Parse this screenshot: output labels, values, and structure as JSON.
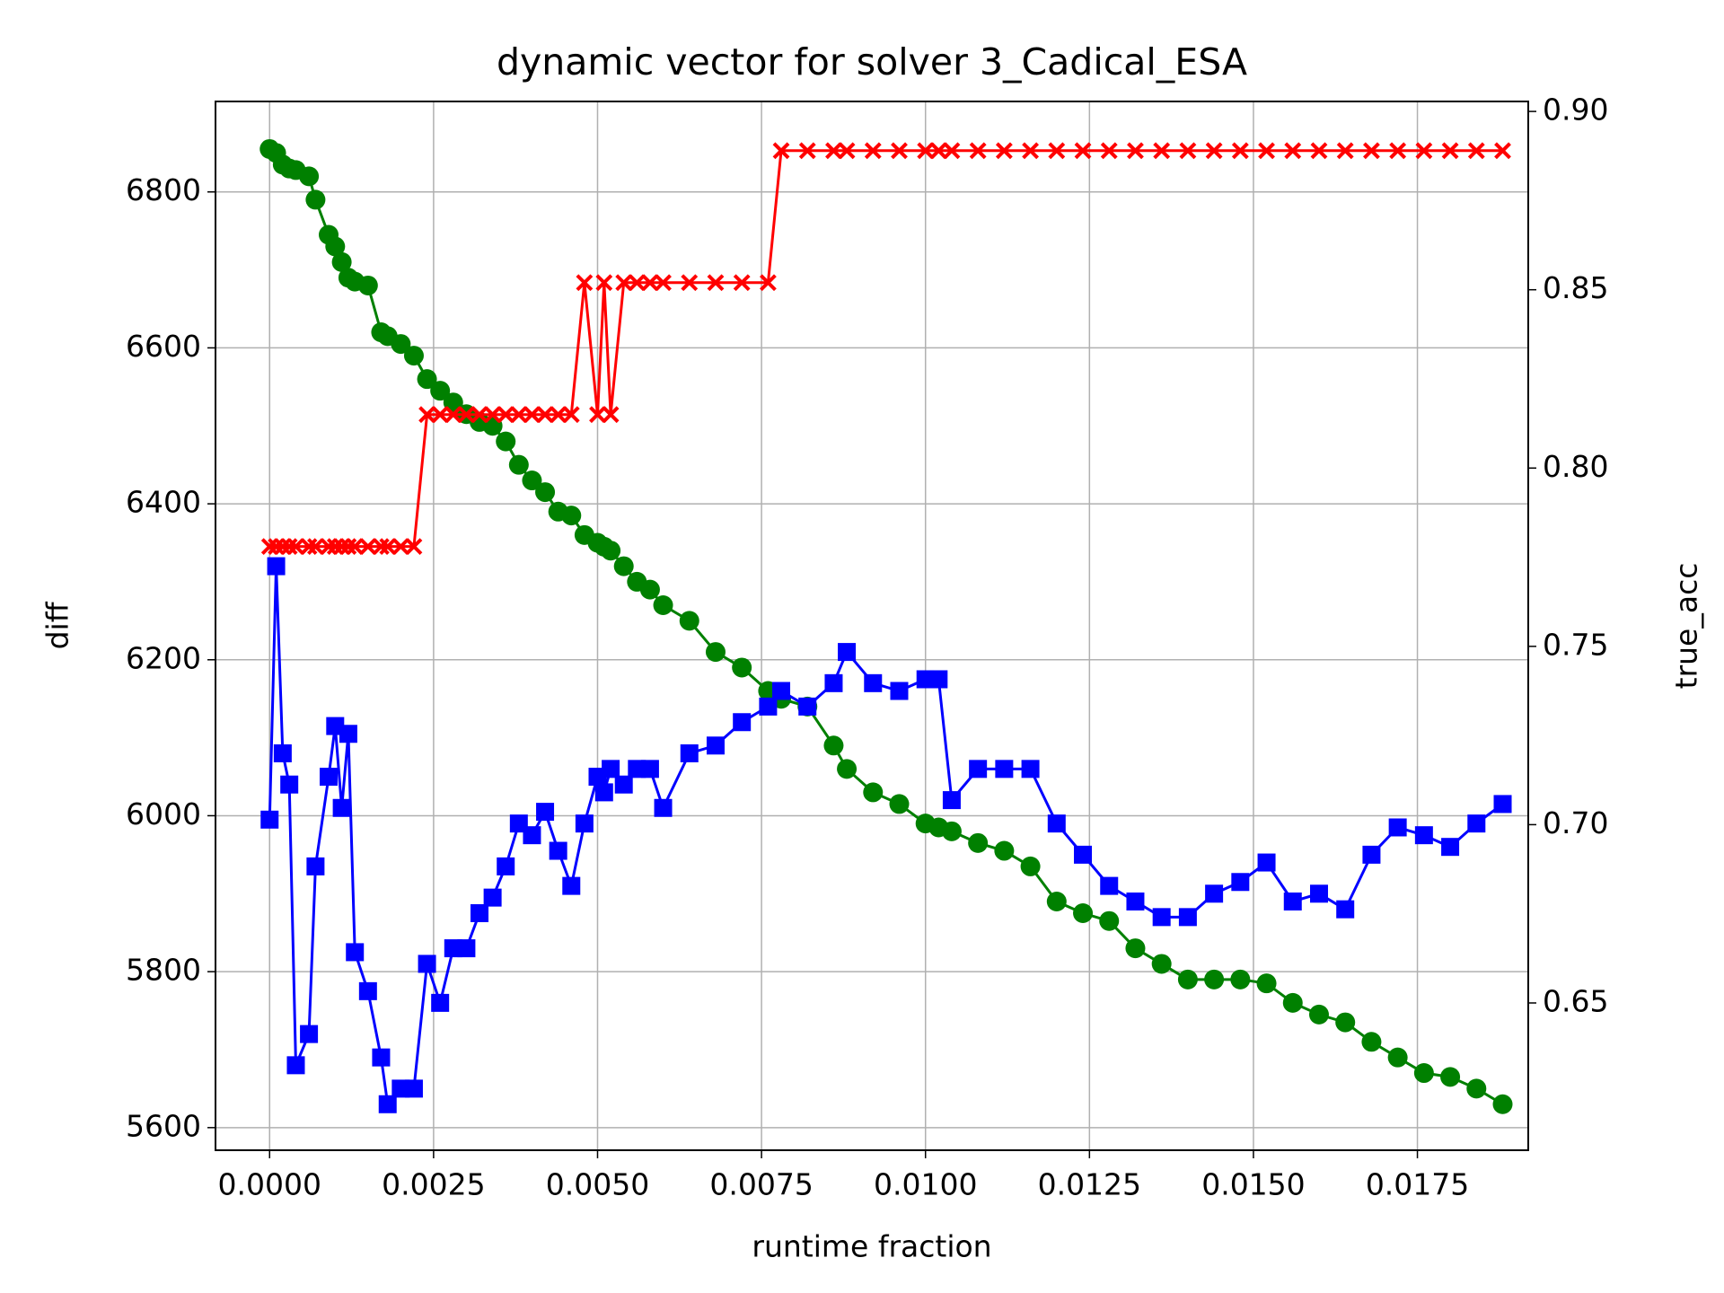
{
  "chart_data": {
    "type": "line",
    "title": "dynamic vector for solver 3_Cadical_ESA",
    "xlabel": "runtime fraction",
    "ylabel": "diff",
    "y2label": "true_acc",
    "ylabel_color": "green",
    "y2label_color": "red",
    "grid": true,
    "x": [
      0,
      0.0001,
      0.0002,
      0.0003,
      0.0004,
      0.0006,
      0.0007,
      0.0009,
      0.001,
      0.0011,
      0.0012,
      0.0013,
      0.0015,
      0.0017,
      0.0018,
      0.002,
      0.0022,
      0.0024,
      0.0026,
      0.0028,
      0.003,
      0.0032,
      0.0034,
      0.0036,
      0.0038,
      0.004,
      0.0042,
      0.0044,
      0.0046,
      0.0048,
      0.005,
      0.0051,
      0.0052,
      0.0054,
      0.0056,
      0.0058,
      0.006,
      0.0064,
      0.0068,
      0.0072,
      0.0076,
      0.0078,
      0.0082,
      0.0086,
      0.0088,
      0.0092,
      0.0096,
      0.01,
      0.0102,
      0.0104,
      0.0108,
      0.0112,
      0.0116,
      0.012,
      0.0124,
      0.0128,
      0.0132,
      0.0136,
      0.014,
      0.0144,
      0.0148,
      0.0152,
      0.0156,
      0.016,
      0.0164,
      0.0168,
      0.0172,
      0.0176,
      0.018,
      0.0184,
      0.0188
    ],
    "series": [
      {
        "color": "green",
        "marker": "circle",
        "values": [
          6855,
          6850,
          6835,
          6830,
          6828,
          6820,
          6790,
          6745,
          6730,
          6710,
          6690,
          6685,
          6680,
          6620,
          6615,
          6605,
          6590,
          6560,
          6545,
          6530,
          6515,
          6505,
          6500,
          6480,
          6450,
          6430,
          6415,
          6390,
          6385,
          6360,
          6350,
          6345,
          6340,
          6320,
          6300,
          6290,
          6270,
          6250,
          6210,
          6190,
          6160,
          6150,
          6140,
          6090,
          6060,
          6030,
          6015,
          5990,
          5985,
          5980,
          5965,
          5955,
          5935,
          5890,
          5875,
          5865,
          5830,
          5810,
          5790,
          5790,
          5790,
          5785,
          5760,
          5745,
          5735,
          5710,
          5690,
          5670,
          5665,
          5650,
          5630
        ]
      },
      {
        "color": "blue",
        "marker": "square",
        "values": [
          5995,
          6320,
          6080,
          6040,
          5680,
          5720,
          5935,
          6050,
          6115,
          6010,
          6105,
          5825,
          5775,
          5690,
          5630,
          5650,
          5650,
          5810,
          5760,
          5830,
          5830,
          5875,
          5895,
          5935,
          5990,
          5975,
          6005,
          5955,
          5910,
          5990,
          6050,
          6030,
          6060,
          6040,
          6060,
          6060,
          6010,
          6080,
          6090,
          6120,
          6140,
          6160,
          6140,
          6170,
          6210,
          6170,
          6160,
          6175,
          6175,
          6020,
          6060,
          6060,
          6060,
          5990,
          5950,
          5910,
          5890,
          5870,
          5870,
          5900,
          5915,
          5940,
          5890,
          5900,
          5880,
          5950,
          5985,
          5975,
          5960,
          5990,
          6015
        ]
      },
      {
        "color": "red",
        "marker": "x",
        "axis": "y2",
        "values": [
          0.778,
          0.778,
          0.778,
          0.778,
          0.778,
          0.778,
          0.778,
          0.778,
          0.778,
          0.778,
          0.778,
          0.778,
          0.778,
          0.778,
          0.778,
          0.778,
          0.778,
          0.815,
          0.815,
          0.815,
          0.815,
          0.815,
          0.815,
          0.815,
          0.815,
          0.815,
          0.815,
          0.815,
          0.815,
          0.852,
          0.815,
          0.852,
          0.815,
          0.852,
          0.852,
          0.852,
          0.852,
          0.852,
          0.852,
          0.852,
          0.852,
          0.889,
          0.889,
          0.889,
          0.889,
          0.889,
          0.889,
          0.889,
          0.889,
          0.889,
          0.889,
          0.889,
          0.889,
          0.889,
          0.889,
          0.889,
          0.889,
          0.889,
          0.889,
          0.889,
          0.889,
          0.889,
          0.889,
          0.889,
          0.889,
          0.889,
          0.889,
          0.889,
          0.889,
          0.889,
          0.889
        ]
      }
    ],
    "xlim": [
      -0.000825,
      0.01919
    ],
    "xticks": [
      {
        "value": 0,
        "label": "0.0000"
      },
      0.0025,
      {
        "value": 0.005,
        "label": "0.0050"
      },
      0.0075,
      {
        "value": 0.01,
        "label": "0.0100"
      },
      0.0125,
      {
        "value": 0.015,
        "label": "0.0150"
      },
      0.0175
    ],
    "ylim": [
      5571,
      6916
    ],
    "yticks": [
      5600,
      5800,
      6000,
      6200,
      6400,
      6600,
      6800
    ],
    "y2lim": [
      0.6087,
      0.9028
    ],
    "y2ticks": [
      0.65,
      {
        "value": 0.7,
        "label": "0.70"
      },
      0.75,
      {
        "value": 0.8,
        "label": "0.80"
      },
      0.85,
      {
        "value": 0.9,
        "label": "0.90"
      }
    ]
  }
}
